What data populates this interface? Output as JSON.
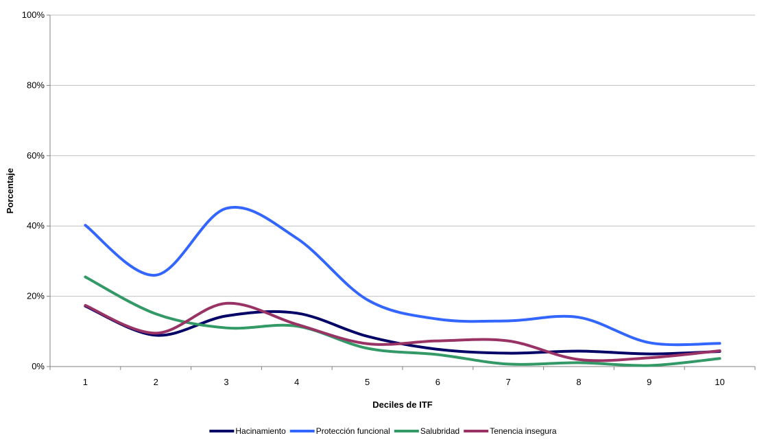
{
  "chart_data": {
    "type": "line",
    "title": "",
    "xlabel": "Deciles de ITF",
    "ylabel": "Porcentaje",
    "categories": [
      "1",
      "2",
      "3",
      "4",
      "5",
      "6",
      "7",
      "8",
      "9",
      "10"
    ],
    "ylim": [
      0,
      100
    ],
    "yticks": [
      "0%",
      "20%",
      "40%",
      "60%",
      "80%",
      "100%"
    ],
    "ytick_values": [
      0,
      20,
      40,
      60,
      80,
      100
    ],
    "grid": "horizontal",
    "legend_position": "bottom",
    "series": [
      {
        "name": "Hacinamiento",
        "color": "#000066",
        "values": [
          17.2,
          8.9,
          14.4,
          15.2,
          8.6,
          4.9,
          3.8,
          4.4,
          3.6,
          4.3
        ]
      },
      {
        "name": "Protección funcional",
        "color": "#3366FF",
        "values": [
          40.2,
          26.0,
          45.0,
          36.5,
          19.0,
          13.5,
          13.0,
          14.0,
          6.8,
          6.6
        ]
      },
      {
        "name": "Salubridad",
        "color": "#339966",
        "values": [
          25.5,
          15.0,
          11.0,
          11.5,
          5.2,
          3.4,
          0.7,
          1.1,
          0.3,
          2.3
        ]
      },
      {
        "name": "Tenencia insegura",
        "color": "#993366",
        "values": [
          17.4,
          9.5,
          18.0,
          12.0,
          6.5,
          7.3,
          7.3,
          2.0,
          2.5,
          4.5
        ]
      }
    ]
  }
}
